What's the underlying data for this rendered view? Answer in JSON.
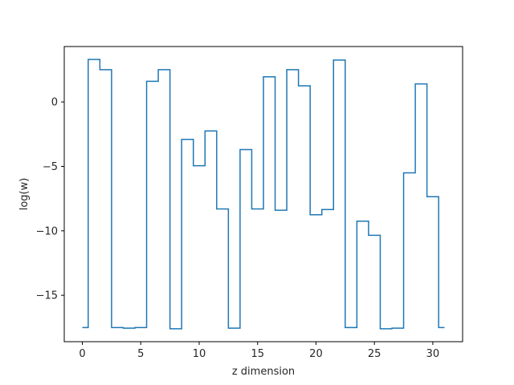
{
  "chart_data": {
    "type": "line",
    "step": "mid",
    "title": "",
    "xlabel": "z dimension",
    "ylabel": "log(w)",
    "xlim": [
      -1.55,
      32.55
    ],
    "ylim": [
      -18.6,
      4.3
    ],
    "xticks": [
      0,
      5,
      10,
      15,
      20,
      25,
      30
    ],
    "xtick_labels": [
      "0",
      "5",
      "10",
      "15",
      "20",
      "25",
      "30"
    ],
    "yticks": [
      0,
      -5,
      -10,
      -15
    ],
    "ytick_labels": [
      "0",
      "−5",
      "−10",
      "−15"
    ],
    "grid": false,
    "series": [
      {
        "color": "#1f77b4",
        "x": [
          0,
          1,
          2,
          3,
          4,
          5,
          6,
          7,
          8,
          9,
          10,
          11,
          12,
          13,
          14,
          15,
          16,
          17,
          18,
          19,
          20,
          21,
          22,
          23,
          24,
          25,
          26,
          27,
          28,
          29,
          30,
          31
        ],
        "y": [
          -17.5,
          3.3,
          2.5,
          -17.5,
          -17.55,
          -17.5,
          1.6,
          2.5,
          -17.6,
          -2.9,
          -4.95,
          -2.25,
          -8.3,
          -17.55,
          -3.7,
          -8.3,
          1.95,
          -8.4,
          2.5,
          1.25,
          -8.75,
          -8.35,
          3.25,
          -17.5,
          -9.25,
          -10.35,
          -17.6,
          -17.55,
          -5.5,
          1.4,
          -7.35,
          -17.5
        ]
      }
    ]
  }
}
